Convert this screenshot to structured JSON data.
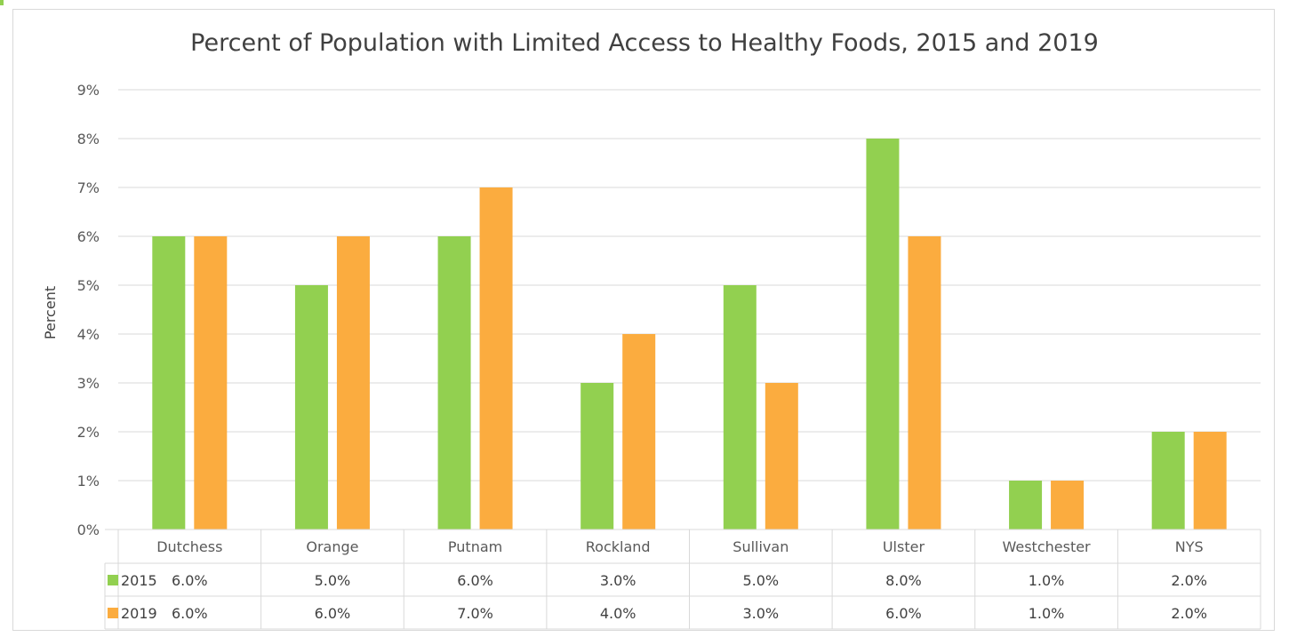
{
  "chart_data": {
    "type": "bar",
    "title": "Percent of Population with Limited Access to Healthy Foods, 2015 and 2019",
    "ylabel": "Percent",
    "xlabel": "",
    "categories": [
      "Dutchess",
      "Orange",
      "Putnam",
      "Rockland",
      "Sullivan",
      "Ulster",
      "Westchester",
      "NYS"
    ],
    "ylim": [
      0,
      9
    ],
    "yticks": [
      "0%",
      "1%",
      "2%",
      "3%",
      "4%",
      "5%",
      "6%",
      "7%",
      "8%",
      "9%"
    ],
    "grid": true,
    "legend": "data-table",
    "series": [
      {
        "name": "2015",
        "color": "#92d050",
        "values": [
          6,
          5,
          6,
          3,
          5,
          8,
          1,
          2
        ],
        "labels": [
          "6.0%",
          "5.0%",
          "6.0%",
          "3.0%",
          "5.0%",
          "8.0%",
          "1.0%",
          "2.0%"
        ]
      },
      {
        "name": "2019",
        "color": "#fbac3f",
        "values": [
          6,
          6,
          7,
          4,
          3,
          6,
          1,
          2
        ],
        "labels": [
          "6.0%",
          "6.0%",
          "7.0%",
          "4.0%",
          "3.0%",
          "6.0%",
          "1.0%",
          "2.0%"
        ]
      }
    ]
  }
}
